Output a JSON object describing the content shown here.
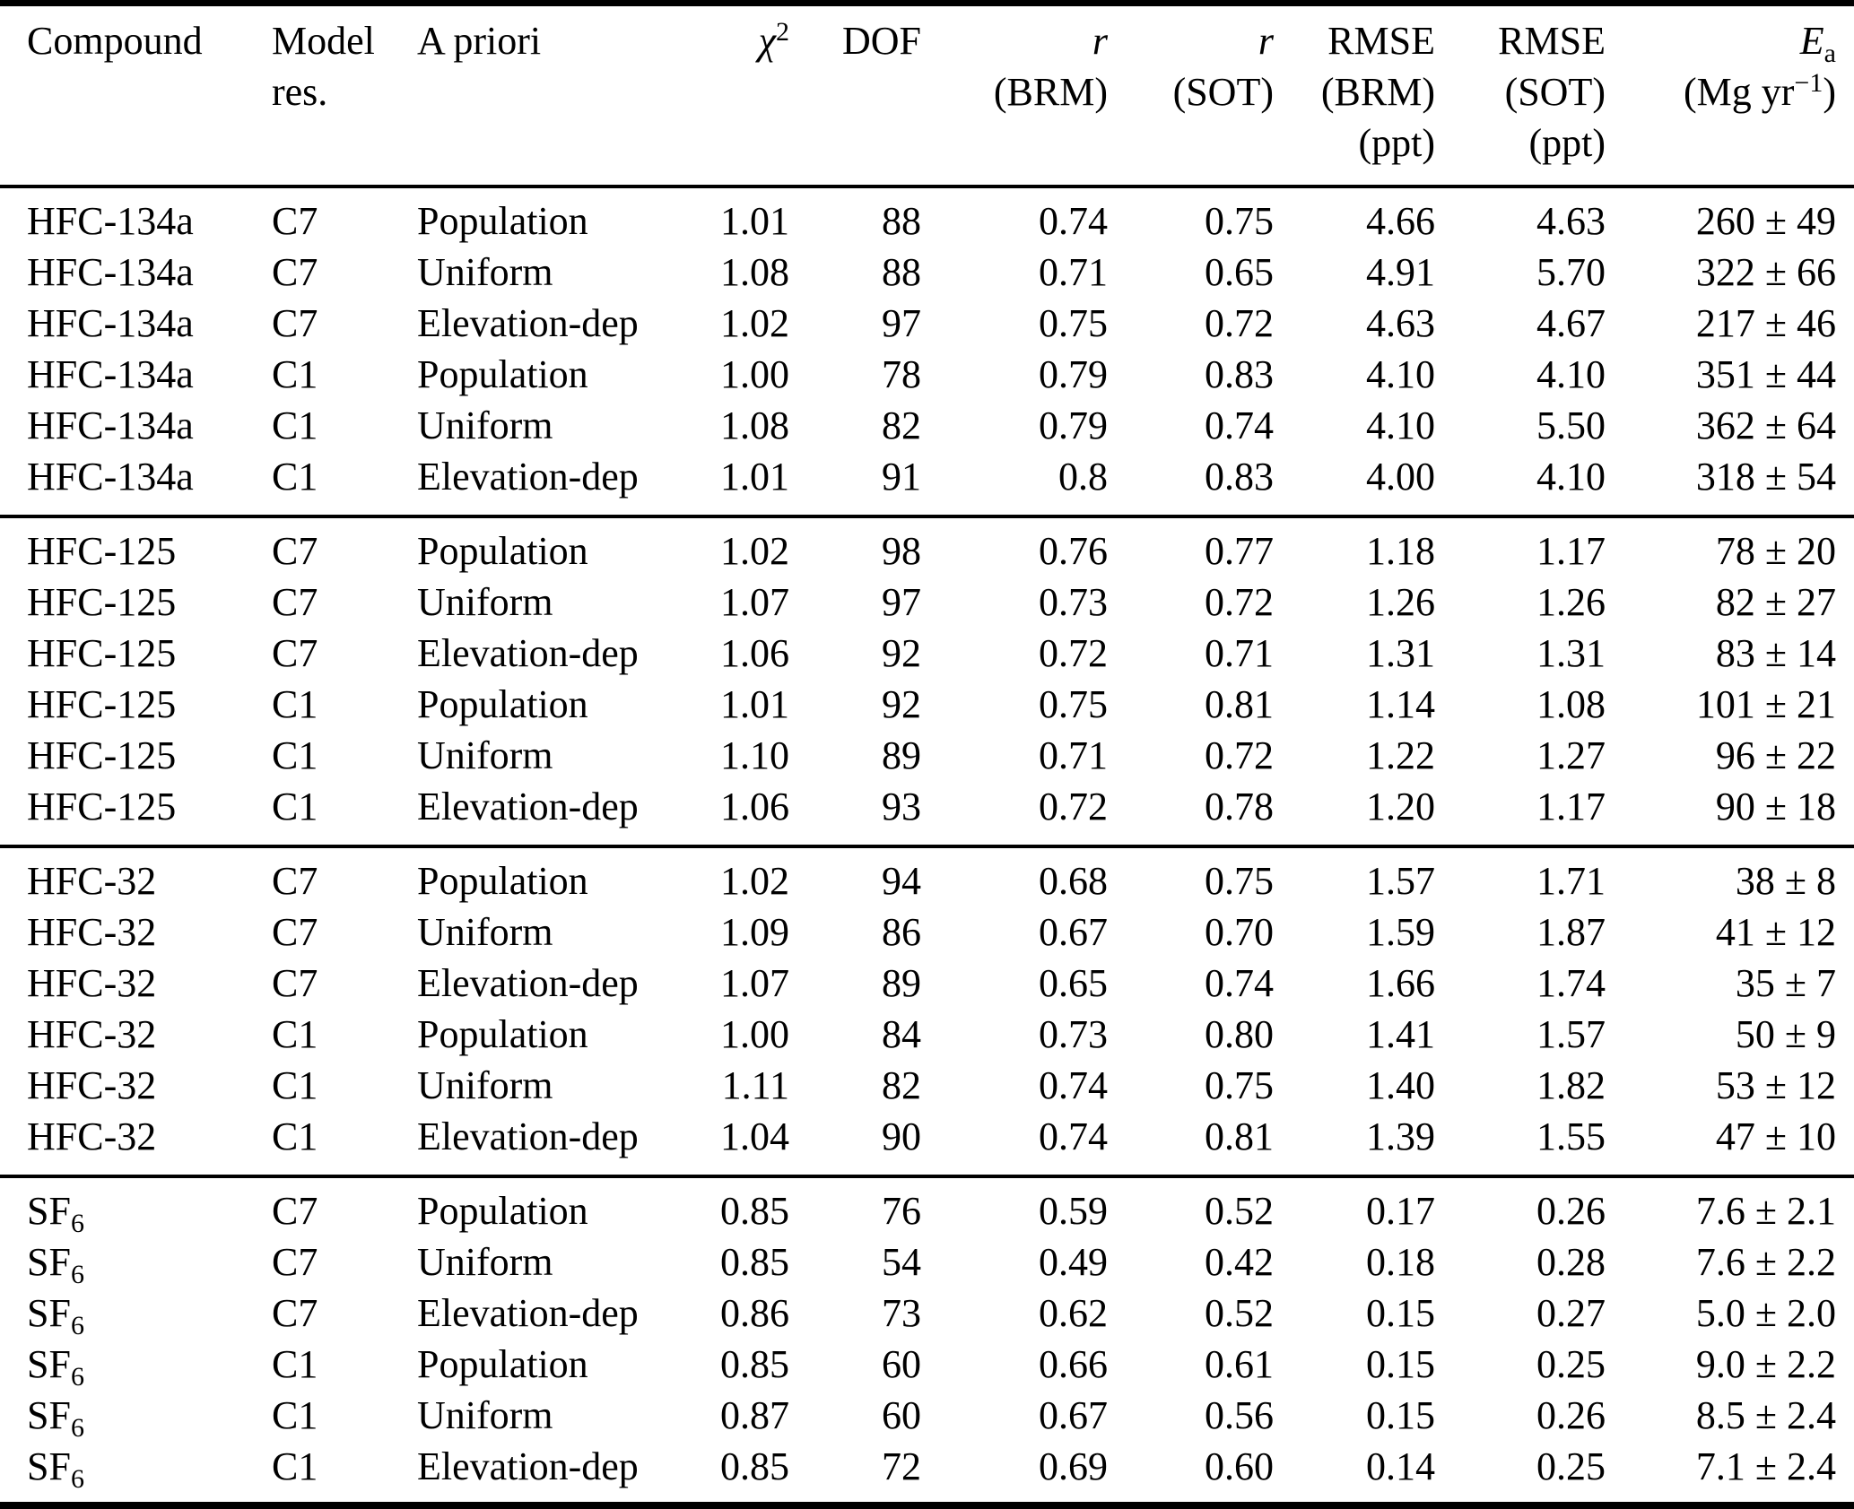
{
  "table": {
    "header": {
      "compound": "Compound",
      "model_res_line1": "Model",
      "model_res_line2": "res.",
      "a_priori": "A priori",
      "chi2_base": "χ",
      "chi2_sup": "2",
      "dof": "DOF",
      "r_brm_line1": "r",
      "r_brm_line2": "(BRM)",
      "r_sot_line1": "r",
      "r_sot_line2": "(SOT)",
      "rmse_brm_line1": "RMSE",
      "rmse_brm_line2": "(BRM)",
      "rmse_brm_line3": "(ppt)",
      "rmse_sot_line1": "RMSE",
      "rmse_sot_line2": "(SOT)",
      "rmse_sot_line3": "(ppt)",
      "ea_base": "E",
      "ea_sub": "a",
      "ea_unit_pre": "(Mg yr",
      "ea_unit_sup": "−1",
      "ea_unit_post": ")"
    },
    "groups": [
      {
        "compound_label": "HFC-134a",
        "rows": [
          {
            "compound": "HFC-134a",
            "compound_sub": "",
            "model_res": "C7",
            "a_priori": "Population",
            "chi2": "1.01",
            "dof": "88",
            "r_brm": "0.74",
            "r_sot": "0.75",
            "rmse_brm": "4.66",
            "rmse_sot": "4.63",
            "ea": "260 ± 49"
          },
          {
            "compound": "HFC-134a",
            "compound_sub": "",
            "model_res": "C7",
            "a_priori": "Uniform",
            "chi2": "1.08",
            "dof": "88",
            "r_brm": "0.71",
            "r_sot": "0.65",
            "rmse_brm": "4.91",
            "rmse_sot": "5.70",
            "ea": "322 ± 66"
          },
          {
            "compound": "HFC-134a",
            "compound_sub": "",
            "model_res": "C7",
            "a_priori": "Elevation-dep",
            "chi2": "1.02",
            "dof": "97",
            "r_brm": "0.75",
            "r_sot": "0.72",
            "rmse_brm": "4.63",
            "rmse_sot": "4.67",
            "ea": "217 ± 46"
          },
          {
            "compound": "HFC-134a",
            "compound_sub": "",
            "model_res": "C1",
            "a_priori": "Population",
            "chi2": "1.00",
            "dof": "78",
            "r_brm": "0.79",
            "r_sot": "0.83",
            "rmse_brm": "4.10",
            "rmse_sot": "4.10",
            "ea": "351 ± 44"
          },
          {
            "compound": "HFC-134a",
            "compound_sub": "",
            "model_res": "C1",
            "a_priori": "Uniform",
            "chi2": "1.08",
            "dof": "82",
            "r_brm": "0.79",
            "r_sot": "0.74",
            "rmse_brm": "4.10",
            "rmse_sot": "5.50",
            "ea": "362 ± 64"
          },
          {
            "compound": "HFC-134a",
            "compound_sub": "",
            "model_res": "C1",
            "a_priori": "Elevation-dep",
            "chi2": "1.01",
            "dof": "91",
            "r_brm": "0.8",
            "r_sot": "0.83",
            "rmse_brm": "4.00",
            "rmse_sot": "4.10",
            "ea": "318 ± 54"
          }
        ]
      },
      {
        "compound_label": "HFC-125",
        "rows": [
          {
            "compound": "HFC-125",
            "compound_sub": "",
            "model_res": "C7",
            "a_priori": "Population",
            "chi2": "1.02",
            "dof": "98",
            "r_brm": "0.76",
            "r_sot": "0.77",
            "rmse_brm": "1.18",
            "rmse_sot": "1.17",
            "ea": "78 ± 20"
          },
          {
            "compound": "HFC-125",
            "compound_sub": "",
            "model_res": "C7",
            "a_priori": "Uniform",
            "chi2": "1.07",
            "dof": "97",
            "r_brm": "0.73",
            "r_sot": "0.72",
            "rmse_brm": "1.26",
            "rmse_sot": "1.26",
            "ea": "82 ± 27"
          },
          {
            "compound": "HFC-125",
            "compound_sub": "",
            "model_res": "C7",
            "a_priori": "Elevation-dep",
            "chi2": "1.06",
            "dof": "92",
            "r_brm": "0.72",
            "r_sot": "0.71",
            "rmse_brm": "1.31",
            "rmse_sot": "1.31",
            "ea": "83 ± 14"
          },
          {
            "compound": "HFC-125",
            "compound_sub": "",
            "model_res": "C1",
            "a_priori": "Population",
            "chi2": "1.01",
            "dof": "92",
            "r_brm": "0.75",
            "r_sot": "0.81",
            "rmse_brm": "1.14",
            "rmse_sot": "1.08",
            "ea": "101 ± 21"
          },
          {
            "compound": "HFC-125",
            "compound_sub": "",
            "model_res": "C1",
            "a_priori": "Uniform",
            "chi2": "1.10",
            "dof": "89",
            "r_brm": "0.71",
            "r_sot": "0.72",
            "rmse_brm": "1.22",
            "rmse_sot": "1.27",
            "ea": "96 ± 22"
          },
          {
            "compound": "HFC-125",
            "compound_sub": "",
            "model_res": "C1",
            "a_priori": "Elevation-dep",
            "chi2": "1.06",
            "dof": "93",
            "r_brm": "0.72",
            "r_sot": "0.78",
            "rmse_brm": "1.20",
            "rmse_sot": "1.17",
            "ea": "90 ± 18"
          }
        ]
      },
      {
        "compound_label": "HFC-32",
        "rows": [
          {
            "compound": "HFC-32",
            "compound_sub": "",
            "model_res": "C7",
            "a_priori": "Population",
            "chi2": "1.02",
            "dof": "94",
            "r_brm": "0.68",
            "r_sot": "0.75",
            "rmse_brm": "1.57",
            "rmse_sot": "1.71",
            "ea": "38 ± 8"
          },
          {
            "compound": "HFC-32",
            "compound_sub": "",
            "model_res": "C7",
            "a_priori": "Uniform",
            "chi2": "1.09",
            "dof": "86",
            "r_brm": "0.67",
            "r_sot": "0.70",
            "rmse_brm": "1.59",
            "rmse_sot": "1.87",
            "ea": "41 ± 12"
          },
          {
            "compound": "HFC-32",
            "compound_sub": "",
            "model_res": "C7",
            "a_priori": "Elevation-dep",
            "chi2": "1.07",
            "dof": "89",
            "r_brm": "0.65",
            "r_sot": "0.74",
            "rmse_brm": "1.66",
            "rmse_sot": "1.74",
            "ea": "35 ± 7"
          },
          {
            "compound": "HFC-32",
            "compound_sub": "",
            "model_res": "C1",
            "a_priori": "Population",
            "chi2": "1.00",
            "dof": "84",
            "r_brm": "0.73",
            "r_sot": "0.80",
            "rmse_brm": "1.41",
            "rmse_sot": "1.57",
            "ea": "50 ± 9"
          },
          {
            "compound": "HFC-32",
            "compound_sub": "",
            "model_res": "C1",
            "a_priori": "Uniform",
            "chi2": "1.11",
            "dof": "82",
            "r_brm": "0.74",
            "r_sot": "0.75",
            "rmse_brm": "1.40",
            "rmse_sot": "1.82",
            "ea": "53 ± 12"
          },
          {
            "compound": "HFC-32",
            "compound_sub": "",
            "model_res": "C1",
            "a_priori": "Elevation-dep",
            "chi2": "1.04",
            "dof": "90",
            "r_brm": "0.74",
            "r_sot": "0.81",
            "rmse_brm": "1.39",
            "rmse_sot": "1.55",
            "ea": "47 ± 10"
          }
        ]
      },
      {
        "compound_label": "SF6",
        "rows": [
          {
            "compound": "SF",
            "compound_sub": "6",
            "model_res": "C7",
            "a_priori": "Population",
            "chi2": "0.85",
            "dof": "76",
            "r_brm": "0.59",
            "r_sot": "0.52",
            "rmse_brm": "0.17",
            "rmse_sot": "0.26",
            "ea": "7.6 ± 2.1"
          },
          {
            "compound": "SF",
            "compound_sub": "6",
            "model_res": "C7",
            "a_priori": "Uniform",
            "chi2": "0.85",
            "dof": "54",
            "r_brm": "0.49",
            "r_sot": "0.42",
            "rmse_brm": "0.18",
            "rmse_sot": "0.28",
            "ea": "7.6 ± 2.2"
          },
          {
            "compound": "SF",
            "compound_sub": "6",
            "model_res": "C7",
            "a_priori": "Elevation-dep",
            "chi2": "0.86",
            "dof": "73",
            "r_brm": "0.62",
            "r_sot": "0.52",
            "rmse_brm": "0.15",
            "rmse_sot": "0.27",
            "ea": "5.0 ± 2.0"
          },
          {
            "compound": "SF",
            "compound_sub": "6",
            "model_res": "C1",
            "a_priori": "Population",
            "chi2": "0.85",
            "dof": "60",
            "r_brm": "0.66",
            "r_sot": "0.61",
            "rmse_brm": "0.15",
            "rmse_sot": "0.25",
            "ea": "9.0 ± 2.2"
          },
          {
            "compound": "SF",
            "compound_sub": "6",
            "model_res": "C1",
            "a_priori": "Uniform",
            "chi2": "0.87",
            "dof": "60",
            "r_brm": "0.67",
            "r_sot": "0.56",
            "rmse_brm": "0.15",
            "rmse_sot": "0.26",
            "ea": "8.5 ± 2.4"
          },
          {
            "compound": "SF",
            "compound_sub": "6",
            "model_res": "C1",
            "a_priori": "Elevation-dep",
            "chi2": "0.85",
            "dof": "72",
            "r_brm": "0.69",
            "r_sot": "0.60",
            "rmse_brm": "0.14",
            "rmse_sot": "0.25",
            "ea": "7.1 ± 2.4"
          }
        ]
      }
    ]
  }
}
